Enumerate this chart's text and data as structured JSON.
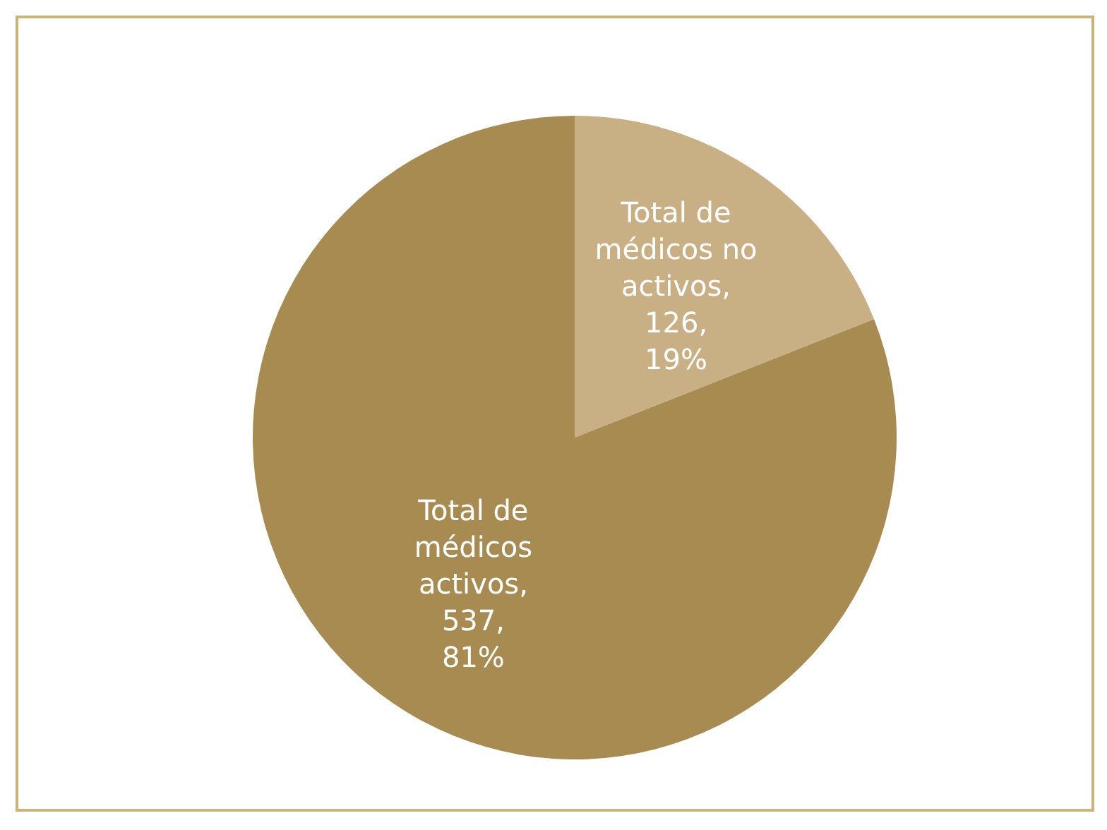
{
  "chart_data": {
    "type": "pie",
    "categories": [
      "Total de médicos no activos",
      "Total de médicos activos"
    ],
    "values": [
      126,
      537
    ],
    "colors": [
      "#c8b084",
      "#a88b50"
    ],
    "value_labels": [
      ", 126, 19%",
      ", 537, 81%"
    ]
  }
}
